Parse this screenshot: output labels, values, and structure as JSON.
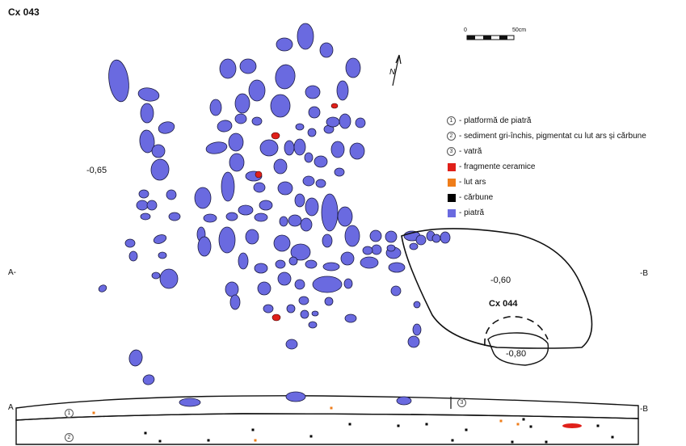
{
  "title": "Cx 043",
  "feature_label": "Cx 044",
  "depths": {
    "main": "-0,65",
    "feature": "-0,60",
    "pit": "-0,80"
  },
  "section_markers": {
    "a": "A-",
    "b": "-B",
    "a2": "A",
    "b2": "-B"
  },
  "scale": {
    "zero": "0",
    "end": "50cm"
  },
  "north": "N",
  "legend": [
    {
      "marker": "1",
      "text": "- platformă de piatră"
    },
    {
      "marker": "2",
      "text": "- sediment gri-închis, pigmentat cu lut ars și cărbune"
    },
    {
      "marker": "3",
      "text": "- vatră"
    },
    {
      "color": "#e0201a",
      "text": "- fragmente ceramice"
    },
    {
      "color": "#ef7d1a",
      "text": "- lut ars"
    },
    {
      "color": "#000000",
      "text": "- cărbune"
    },
    {
      "color": "#6a6ae0",
      "text": "- piatră"
    }
  ],
  "section_labels": {
    "layer1": "1",
    "layer2": "2",
    "layer3": "3"
  },
  "colors": {
    "stone": "#6a6ae0",
    "ceramic": "#e0201a",
    "burnt_clay": "#ef7d1a",
    "charcoal": "#000000"
  }
}
